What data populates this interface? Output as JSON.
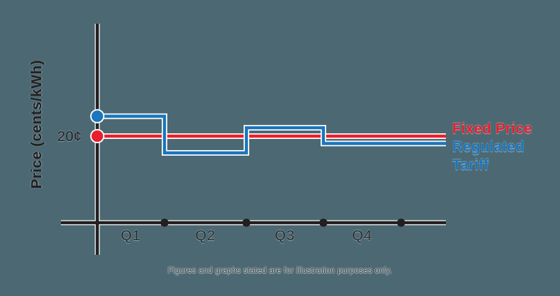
{
  "figure": {
    "background_color": "#4c6973",
    "casing_color": "#ffffff",
    "axis_color": "#231f20"
  },
  "chart_data": {
    "type": "line",
    "subtype": "step",
    "title": "",
    "xlabel": "",
    "ylabel": "Price (cents/kWh)",
    "x_categories": [
      "Q1",
      "Q2",
      "Q3",
      "Q4"
    ],
    "y_tick_label": "20¢",
    "y_reference_value_cents": 20,
    "grid": false,
    "legend_position": "right",
    "series": [
      {
        "name": "Fixed Price",
        "color": "#e81f2d",
        "values_cents_per_kwh": [
          20,
          20,
          20,
          20
        ]
      },
      {
        "name": "Regulated Tariff",
        "color": "#1b76bc",
        "values_cents_per_kwh": [
          21.9,
          18.4,
          20.8,
          19.3
        ]
      }
    ],
    "note": "Figures and graphs stated are for illustration purposes only."
  }
}
